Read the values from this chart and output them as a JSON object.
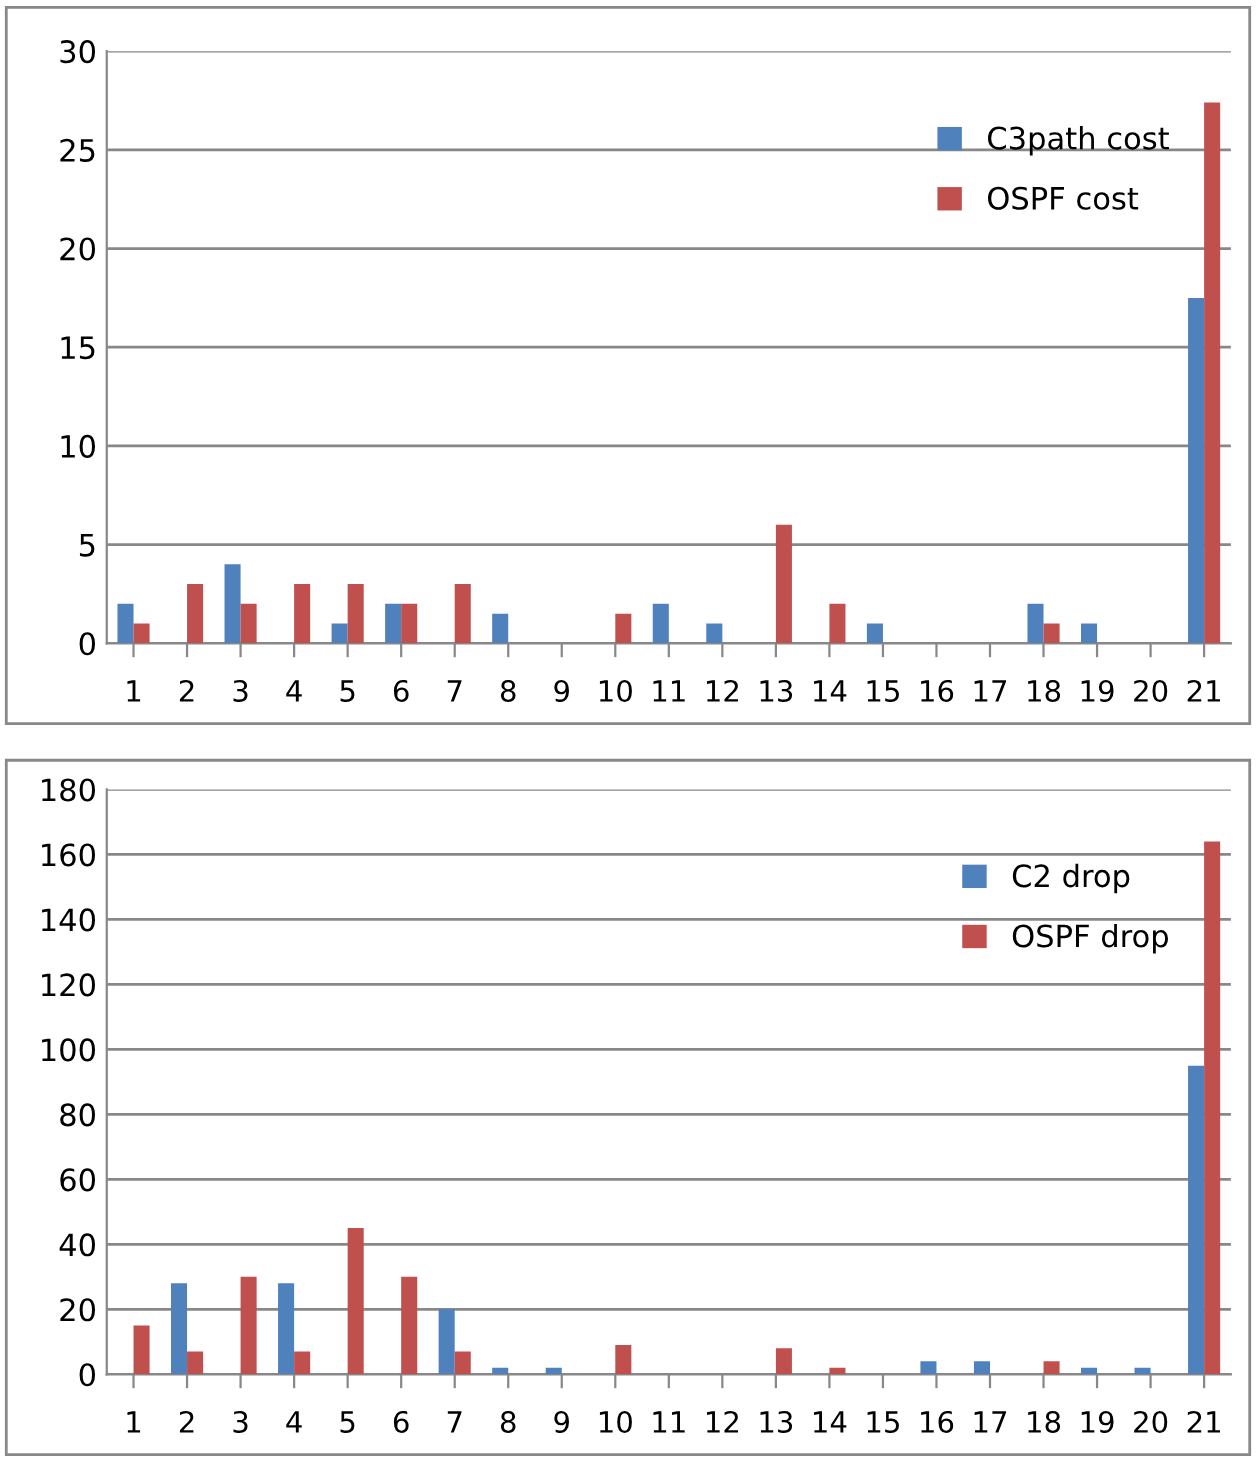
{
  "chart_data": [
    {
      "type": "bar",
      "categories": [
        "1",
        "2",
        "3",
        "4",
        "5",
        "6",
        "7",
        "8",
        "9",
        "10",
        "11",
        "12",
        "13",
        "14",
        "15",
        "16",
        "17",
        "18",
        "19",
        "20",
        "21"
      ],
      "series": [
        {
          "name": "C3path cost",
          "color": "#4f81bd",
          "values": [
            2,
            0,
            4,
            0,
            1,
            2,
            0,
            1.5,
            0,
            0,
            2,
            1,
            0,
            0,
            1,
            0,
            0,
            2,
            1,
            0,
            17.5
          ]
        },
        {
          "name": "OSPF cost",
          "color": "#c0504d",
          "values": [
            1,
            3,
            2,
            3,
            3,
            2,
            3,
            0,
            0,
            1.5,
            0,
            0,
            6,
            2,
            0,
            0,
            0,
            1,
            0,
            0,
            27.4
          ]
        }
      ],
      "ylim": [
        0,
        30
      ],
      "yticks": [
        0,
        5,
        10,
        15,
        20,
        25,
        30
      ],
      "grid": "y",
      "legend": "top right"
    },
    {
      "type": "bar",
      "categories": [
        "1",
        "2",
        "3",
        "4",
        "5",
        "6",
        "7",
        "8",
        "9",
        "10",
        "11",
        "12",
        "13",
        "14",
        "15",
        "16",
        "17",
        "18",
        "19",
        "20",
        "21"
      ],
      "series": [
        {
          "name": "C2 drop",
          "color": "#4f81bd",
          "values": [
            0,
            28,
            0,
            28,
            0,
            0,
            20,
            2,
            2,
            0,
            0,
            0,
            null,
            0,
            null,
            4,
            4,
            0,
            2,
            2,
            95
          ]
        },
        {
          "name": "OSPF drop",
          "color": "#c0504d",
          "values": [
            15,
            7,
            30,
            7,
            45,
            30,
            7,
            0,
            0,
            9,
            0,
            0,
            8,
            2,
            0,
            0,
            0,
            4,
            0,
            0,
            164
          ]
        }
      ],
      "ylim": [
        0,
        180
      ],
      "yticks": [
        0,
        20,
        40,
        60,
        80,
        100,
        120,
        140,
        160,
        180
      ],
      "grid": "y",
      "legend": "top right"
    }
  ]
}
